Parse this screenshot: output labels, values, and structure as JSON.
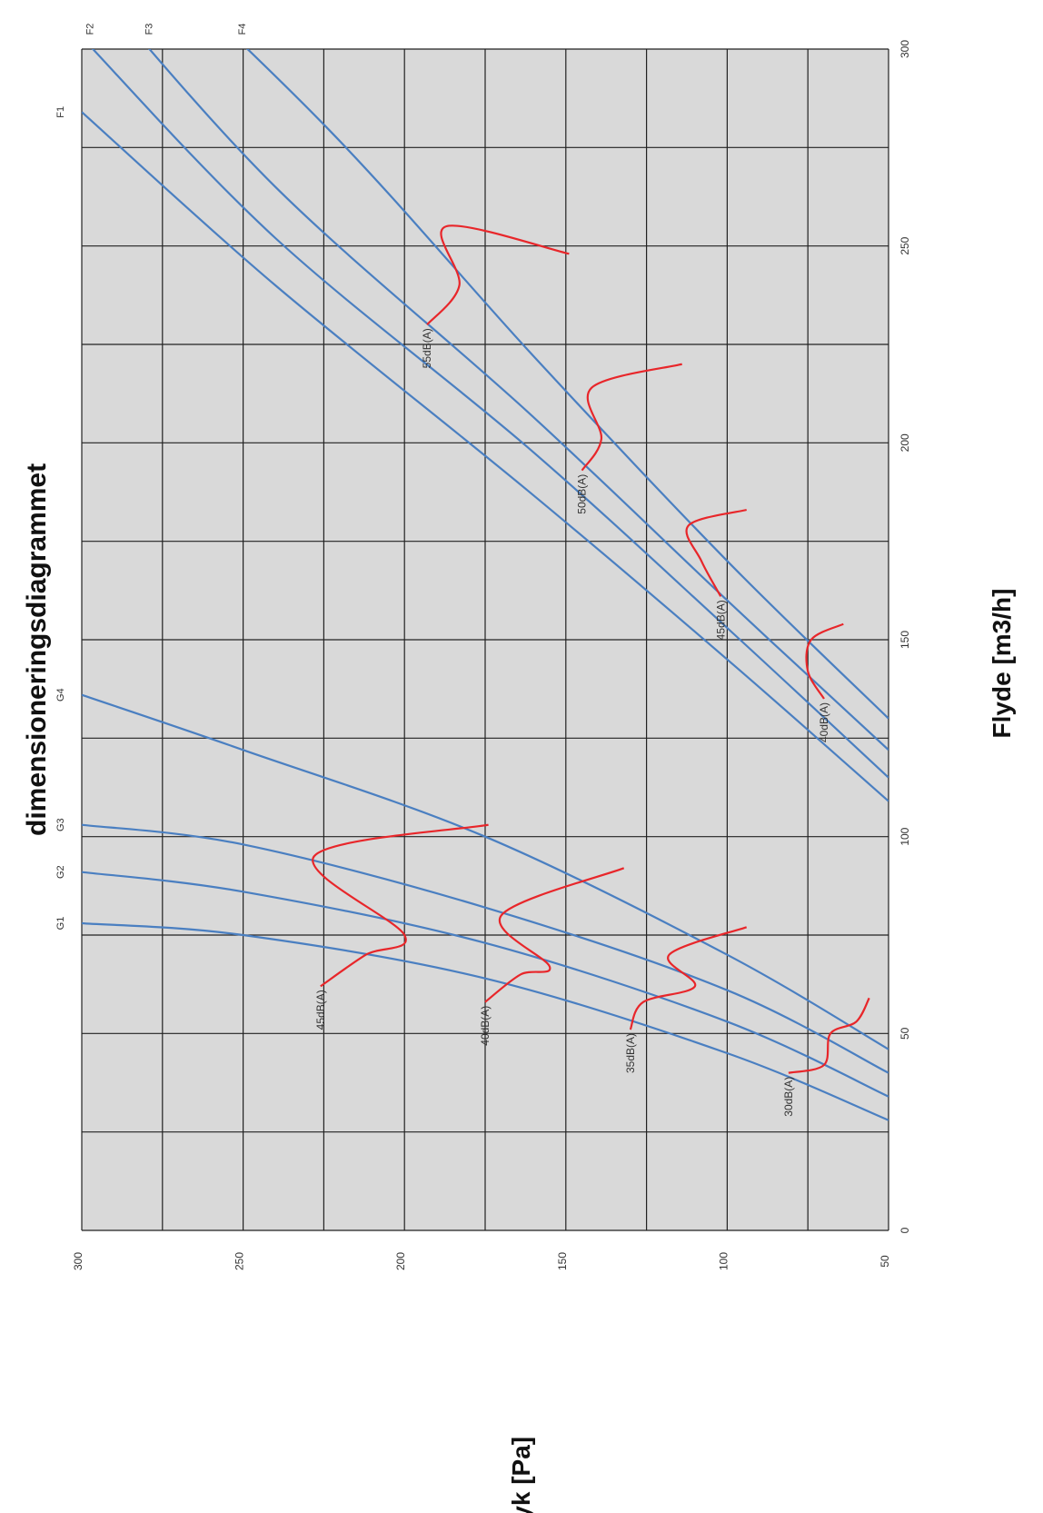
{
  "chart_data": {
    "type": "line",
    "title": "dimensioneringsdiagrammet",
    "xlabel": "Flyde [m3/h]",
    "ylabel": "Tryk [Pa]",
    "xlim": [
      0,
      300
    ],
    "ylim": [
      50,
      300
    ],
    "x_ticks": [
      0,
      50,
      100,
      150,
      200,
      250,
      300
    ],
    "x_gridlines": [
      0,
      25,
      50,
      75,
      100,
      125,
      150,
      175,
      200,
      225,
      250,
      275,
      300
    ],
    "y_ticks": [
      50,
      100,
      150,
      200,
      250,
      300
    ],
    "y_gridlines": [
      50,
      75,
      100,
      125,
      150,
      175,
      200,
      225,
      250,
      275,
      300
    ],
    "grid": true,
    "background_color": "#d9d9d9",
    "series_color": "#4a7fc1",
    "sound_curve_color": "#e8262a",
    "series": [
      {
        "name": "G1",
        "points": [
          [
            28,
            50
          ],
          [
            45,
            100
          ],
          [
            64,
            175
          ],
          [
            75,
            250
          ],
          [
            78,
            300
          ]
        ]
      },
      {
        "name": "G2",
        "points": [
          [
            34,
            50
          ],
          [
            53,
            100
          ],
          [
            73,
            175
          ],
          [
            86,
            250
          ],
          [
            91,
            300
          ]
        ]
      },
      {
        "name": "G3",
        "points": [
          [
            40,
            50
          ],
          [
            61,
            100
          ],
          [
            82,
            175
          ],
          [
            98,
            250
          ],
          [
            103,
            300
          ]
        ]
      },
      {
        "name": "G4",
        "points": [
          [
            46,
            50
          ],
          [
            70,
            100
          ],
          [
            100,
            175
          ],
          [
            122,
            250
          ],
          [
            136,
            300
          ]
        ]
      },
      {
        "name": "F1",
        "points": [
          [
            109,
            50
          ],
          [
            145,
            100
          ],
          [
            188,
            162
          ],
          [
            240,
            240
          ],
          [
            284,
            300
          ]
        ]
      },
      {
        "name": "F2",
        "points": [
          [
            115,
            50
          ],
          [
            153,
            100
          ],
          [
            199,
            162
          ],
          [
            252,
            240
          ],
          [
            303,
            300
          ]
        ]
      },
      {
        "name": "F3",
        "points": [
          [
            122,
            50
          ],
          [
            160,
            100
          ],
          [
            208,
            162
          ],
          [
            265,
            240
          ],
          [
            320,
            300
          ]
        ]
      },
      {
        "name": "F4",
        "points": [
          [
            130,
            50
          ],
          [
            170,
            100
          ],
          [
            222,
            160
          ],
          [
            280,
            224
          ],
          [
            340,
            300
          ]
        ]
      }
    ],
    "sound_curves": [
      {
        "label": "30dB(A)",
        "points": [
          [
            40,
            81
          ],
          [
            42,
            70
          ],
          [
            50,
            68
          ],
          [
            53,
            60
          ],
          [
            59,
            56
          ]
        ]
      },
      {
        "label": "35dB(A)",
        "points": [
          [
            51,
            130
          ],
          [
            58,
            126
          ],
          [
            62,
            110
          ],
          [
            70,
            118
          ],
          [
            77,
            94
          ]
        ]
      },
      {
        "label": "40dB(A)",
        "points": [
          [
            58,
            175
          ],
          [
            65,
            164
          ],
          [
            67,
            155
          ],
          [
            80,
            170
          ],
          [
            92,
            132
          ]
        ]
      },
      {
        "label": "45dB(A)",
        "points": [
          [
            62,
            226
          ],
          [
            70,
            212
          ],
          [
            75,
            200
          ],
          [
            95,
            228
          ],
          [
            103,
            174
          ]
        ]
      },
      {
        "label": "40dB(A)",
        "points": [
          [
            135,
            70
          ],
          [
            142,
            75
          ],
          [
            150,
            74
          ],
          [
            154,
            64
          ]
        ]
      },
      {
        "label": "45dB(A)",
        "points": [
          [
            161,
            102
          ],
          [
            170,
            108
          ],
          [
            179,
            112
          ],
          [
            183,
            94
          ]
        ]
      },
      {
        "label": "50dB(A)",
        "points": [
          [
            193,
            145
          ],
          [
            201,
            139
          ],
          [
            214,
            142
          ],
          [
            220,
            114
          ]
        ]
      },
      {
        "label": "55dB(A)",
        "points": [
          [
            230,
            193
          ],
          [
            240,
            183
          ],
          [
            255,
            187
          ],
          [
            248,
            149
          ]
        ]
      }
    ]
  }
}
